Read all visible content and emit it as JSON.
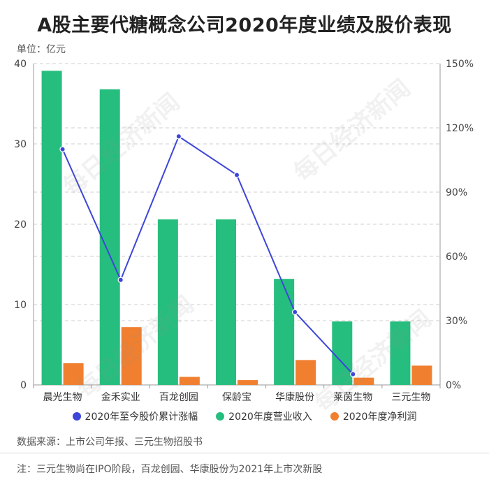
{
  "title": "A股主要代糖概念公司2020年度业绩及股价表现",
  "unit_label": "单位：亿元",
  "source": "数据来源：上市公司年报、三元生物招股书",
  "note": "注：三元生物尚在IPO阶段，百龙创园、华康股份为2021年上市次新股",
  "watermark": "每日经济新闻",
  "chart_data": {
    "type": "bar",
    "categories": [
      "晨光生物",
      "金禾实业",
      "百龙创园",
      "保龄宝",
      "华康股份",
      "莱茵生物",
      "三元生物"
    ],
    "series": [
      {
        "name": "2020年度营业收入",
        "type": "bar",
        "axis": "left",
        "color": "#26be7e",
        "values": [
          39.1,
          36.8,
          20.6,
          20.6,
          13.2,
          7.9,
          7.9
        ]
      },
      {
        "name": "2020年度净利润",
        "type": "bar",
        "axis": "left",
        "color": "#f07f2f",
        "values": [
          2.7,
          7.2,
          1.0,
          0.6,
          3.1,
          0.9,
          2.4
        ]
      },
      {
        "name": "2020年至今股价累计涨幅",
        "type": "line",
        "axis": "right",
        "color": "#3d46d8",
        "values": [
          110,
          49,
          116,
          98,
          34,
          5,
          null
        ]
      }
    ],
    "y_left": {
      "min": 0,
      "max": 40,
      "ticks": [
        "0",
        "10",
        "20",
        "30",
        "40"
      ]
    },
    "y_right": {
      "min": 0,
      "max": 150,
      "ticks": [
        "0%",
        "30%",
        "60%",
        "90%",
        "120%",
        "150%"
      ]
    },
    "grid": true,
    "legend_position": "bottom"
  }
}
